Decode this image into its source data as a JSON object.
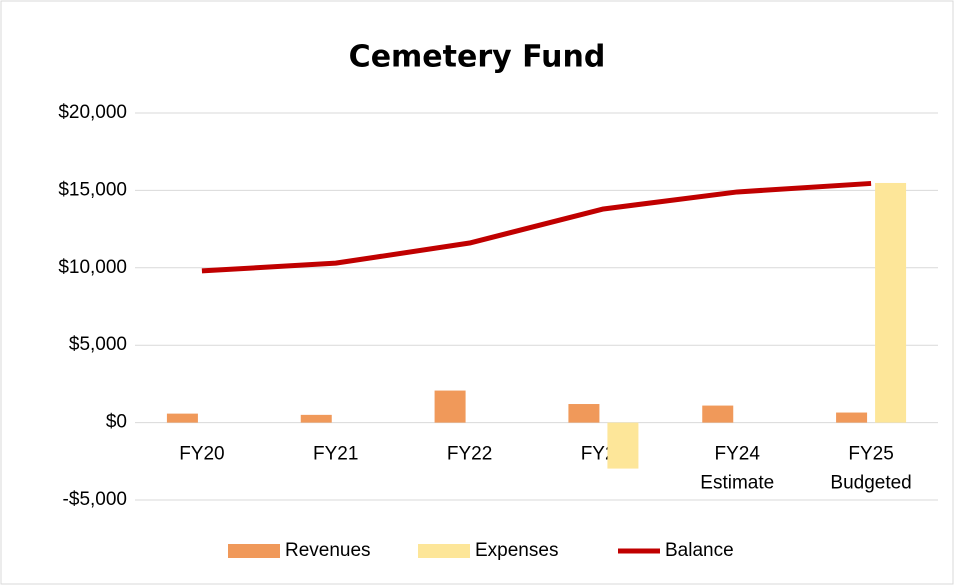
{
  "chart_data": {
    "type": "bar-line",
    "title": "Cemetery Fund",
    "categories": [
      "FY20",
      "FY21",
      "FY22",
      "FY23",
      "FY24 Estimate",
      "FY25 Budgeted"
    ],
    "series": [
      {
        "name": "Revenues",
        "type": "bar",
        "color": "#f0995a",
        "values": [
          580,
          500,
          2070,
          1200,
          1100,
          650
        ]
      },
      {
        "name": "Expenses",
        "type": "bar",
        "color": "#fde699",
        "values": [
          0,
          0,
          0,
          -2970,
          0,
          15480
        ]
      },
      {
        "name": "Balance",
        "type": "line",
        "color": "#c00000",
        "values": [
          9800,
          10300,
          11600,
          13800,
          14900,
          15450
        ]
      }
    ],
    "ylim": [
      -5000,
      20000
    ],
    "yticks": [
      {
        "value": -5000,
        "label": "-$5,000"
      },
      {
        "value": 0,
        "label": "$0"
      },
      {
        "value": 5000,
        "label": "$5,000"
      },
      {
        "value": 10000,
        "label": "$10,000"
      },
      {
        "value": 15000,
        "label": "$15,000"
      },
      {
        "value": 20000,
        "label": "$20,000"
      }
    ],
    "grid": true,
    "legend": "bottom"
  }
}
